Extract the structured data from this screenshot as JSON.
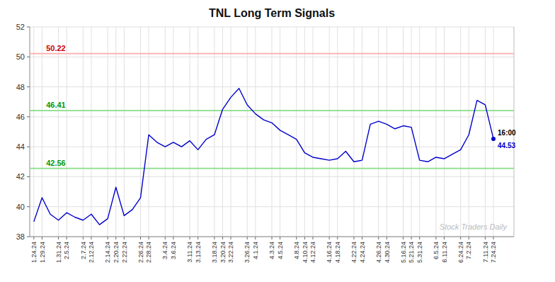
{
  "chart_data": {
    "type": "line",
    "title": "TNL Long Term Signals",
    "categories": [
      "1.24.24",
      "1.29.24",
      null,
      "1.31.24",
      "2.5.24",
      null,
      "2.7.24",
      "2.12.24",
      null,
      "2.14.24",
      "2.20.24",
      "2.22.24",
      null,
      "2.26.24",
      "2.28.24",
      null,
      "3.4.24",
      "3.6.24",
      null,
      "3.11.24",
      "3.13.24",
      null,
      "3.18.24",
      "3.20.24",
      "3.22.24",
      null,
      "3.26.24",
      "4.1.24",
      null,
      "4.3.24",
      "4.5.24",
      null,
      "4.8.24",
      "4.10.24",
      "4.12.24",
      null,
      "4.16.24",
      "4.18.24",
      null,
      "4.22.24",
      "4.24.24",
      null,
      "4.26.24",
      "4.30.24",
      null,
      "5.16.24",
      "5.21.24",
      "5.31.24",
      null,
      "6.5.24",
      "6.11.24",
      null,
      "6.24.24",
      "7.2.24",
      null,
      "7.11.24",
      "7.24.24"
    ],
    "values": [
      39.0,
      40.6,
      39.5,
      39.1,
      39.6,
      39.3,
      39.1,
      39.5,
      38.8,
      39.2,
      41.3,
      39.4,
      39.8,
      40.6,
      44.8,
      44.3,
      44.0,
      44.3,
      44.0,
      44.4,
      43.8,
      44.5,
      44.8,
      46.5,
      47.3,
      47.9,
      46.8,
      46.2,
      45.8,
      45.6,
      45.1,
      44.8,
      44.5,
      43.6,
      43.3,
      43.2,
      43.1,
      43.2,
      43.7,
      43.0,
      43.1,
      45.5,
      45.7,
      45.5,
      45.2,
      45.4,
      45.3,
      43.1,
      43.0,
      43.3,
      43.2,
      43.5,
      43.8,
      44.8,
      47.1,
      46.8,
      44.53
    ],
    "color": "#0000cc",
    "reference_lines": [
      {
        "value": 50.22,
        "color": "#ffaaaa",
        "label_color": "#cc0000"
      },
      {
        "value": 46.41,
        "color": "#88dd88",
        "label_color": "#009900"
      },
      {
        "value": 42.56,
        "color": "#88dd88",
        "label_color": "#009900"
      }
    ],
    "last_label": "16:00",
    "last_value": 44.53,
    "watermark": "Stock Traders Daily",
    "ylim": [
      38,
      52
    ],
    "yticks": [
      38,
      40,
      42,
      44,
      46,
      48,
      50,
      52
    ],
    "grid": true
  }
}
